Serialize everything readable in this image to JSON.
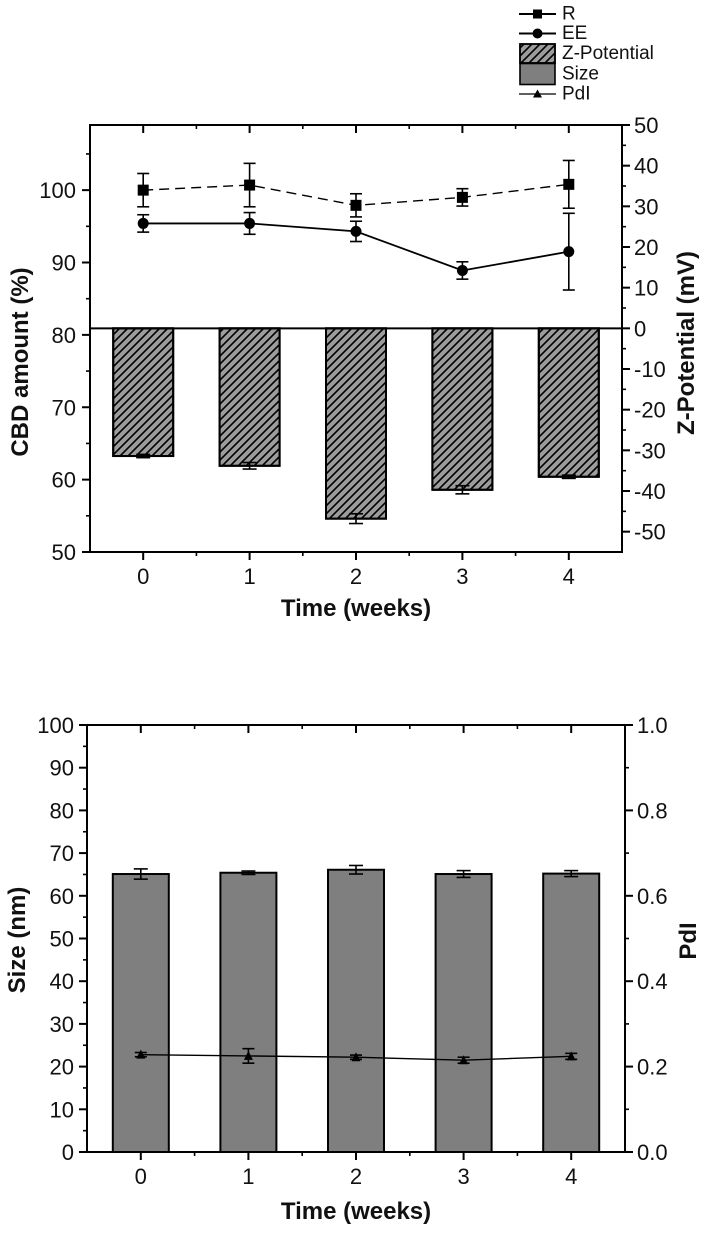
{
  "figure": {
    "background": "#ffffff",
    "ink": "#000000"
  },
  "legend": {
    "items": [
      {
        "label": "R",
        "swatch": "line-square-marker"
      },
      {
        "label": "EE",
        "swatch": "line-circle-marker"
      },
      {
        "label": "Z-Potential",
        "swatch": "hatched-box",
        "fill": "#9c9c9c"
      },
      {
        "label": "Size",
        "swatch": "box",
        "fill": "#7f7f7f"
      },
      {
        "label": "PdI",
        "swatch": "line-triangle-marker"
      }
    ]
  },
  "chart_data": [
    {
      "id": "cbd-zpotential-stability",
      "type": "bar+line",
      "xlabel": "Time (weeks)",
      "x_categories": [
        0,
        1,
        2,
        3,
        4
      ],
      "x_tick_labels": [
        "0",
        "1",
        "2",
        "3",
        "4"
      ],
      "xlim": [
        -0.5,
        4.5
      ],
      "x_minor_step": 0.5,
      "left_axis": {
        "label": "CBD amount (%)",
        "lim": [
          50,
          109
        ],
        "ticks": [
          50,
          60,
          70,
          80,
          90,
          100
        ],
        "tick_labels": [
          "50",
          "60",
          "70",
          "80",
          "90",
          "100"
        ],
        "minor_step": 5
      },
      "right_axis": {
        "label": "Z-Potential (mV)",
        "lim": [
          -55,
          50
        ],
        "ticks": [
          50,
          40,
          30,
          20,
          10,
          0,
          -10,
          -20,
          -30,
          -40,
          -50
        ],
        "tick_labels": [
          "50",
          "40",
          "30",
          "20",
          "10",
          "0",
          "-10",
          "-20",
          "-30",
          "-40",
          "-50"
        ],
        "minor_step": 5
      },
      "series": [
        {
          "name": "R",
          "axis": "left",
          "type": "line",
          "marker": "square",
          "line_style": "dashed",
          "values": [
            100.0,
            100.7,
            97.9,
            99.0,
            100.8
          ],
          "errors": [
            2.3,
            3.0,
            1.6,
            1.2,
            3.3
          ]
        },
        {
          "name": "EE",
          "axis": "left",
          "type": "line",
          "marker": "circle",
          "line_style": "solid",
          "values": [
            95.4,
            95.4,
            94.3,
            88.9,
            91.5
          ],
          "errors": [
            1.2,
            1.5,
            1.4,
            1.2,
            5.3
          ]
        },
        {
          "name": "Z-Potential",
          "axis": "right",
          "type": "bar",
          "hatched": true,
          "fill": "#9c9c9c",
          "baseline": 0,
          "values": [
            -31.4,
            -33.8,
            -46.8,
            -39.7,
            -36.5
          ],
          "errors": [
            0.4,
            0.8,
            1.2,
            1.0,
            0.4
          ]
        }
      ]
    },
    {
      "id": "size-pdi-stability",
      "type": "bar+line",
      "xlabel": "Time (weeks)",
      "x_categories": [
        0,
        1,
        2,
        3,
        4
      ],
      "x_tick_labels": [
        "0",
        "1",
        "2",
        "3",
        "4"
      ],
      "xlim": [
        -0.5,
        4.5
      ],
      "x_minor_step": 0.5,
      "left_axis": {
        "label": "Size (nm)",
        "lim": [
          0,
          100
        ],
        "ticks": [
          0,
          10,
          20,
          30,
          40,
          50,
          60,
          70,
          80,
          90,
          100
        ],
        "tick_labels": [
          "0",
          "10",
          "20",
          "30",
          "40",
          "50",
          "60",
          "70",
          "80",
          "90",
          "100"
        ],
        "minor_step": 5
      },
      "right_axis": {
        "label": "PdI",
        "lim": [
          0,
          1
        ],
        "ticks": [
          0,
          0.2,
          0.4,
          0.6,
          0.8,
          1.0
        ],
        "tick_labels": [
          "0.0",
          "0.2",
          "0.4",
          "0.6",
          "0.8",
          "1.0"
        ],
        "minor_step": 0.1
      },
      "series": [
        {
          "name": "Size",
          "axis": "left",
          "type": "bar",
          "hatched": false,
          "fill": "#7f7f7f",
          "baseline": 0,
          "values": [
            65.1,
            65.4,
            66.1,
            65.1,
            65.2
          ],
          "errors": [
            1.2,
            0.4,
            1.0,
            0.8,
            0.7
          ]
        },
        {
          "name": "PdI",
          "axis": "right",
          "type": "line",
          "marker": "triangle",
          "line_style": "solid",
          "values": [
            0.228,
            0.225,
            0.222,
            0.215,
            0.224
          ],
          "errors": [
            0.005,
            0.017,
            0.005,
            0.007,
            0.007
          ]
        }
      ]
    }
  ]
}
